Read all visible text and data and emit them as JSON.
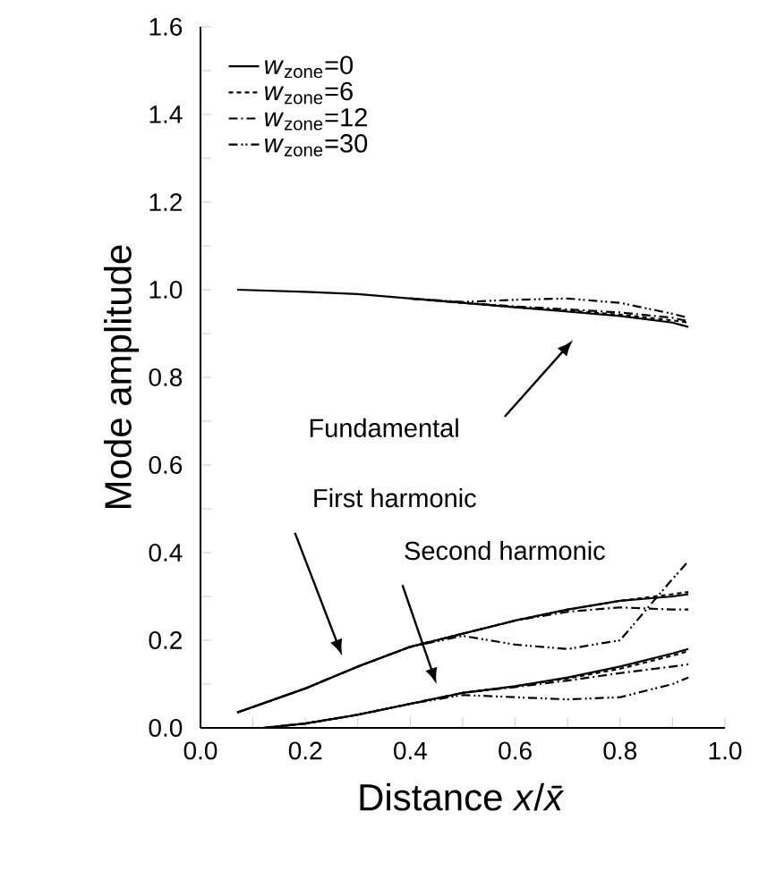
{
  "chart_data": {
    "type": "line",
    "xlabel": "Distance *x*/*x̄*",
    "ylabel": "Mode amplitude",
    "x": [
      0.07,
      0.2,
      0.3,
      0.4,
      0.5,
      0.6,
      0.7,
      0.8,
      0.9,
      0.93
    ],
    "series": [
      {
        "name": "*w*$_{zone}$=0",
        "color": "#000000",
        "line_style": "solid",
        "values": [
          1.0,
          0.995,
          0.99,
          0.98,
          0.97,
          0.96,
          0.95,
          0.94,
          0.925,
          0.915
        ]
      },
      {
        "name": "*w*$_{zone}$=6",
        "color": "#000000",
        "line_style": "dashed",
        "x": [
          0.4,
          0.5,
          0.6,
          0.7,
          0.8,
          0.9,
          0.93
        ],
        "values": [
          0.98,
          0.97,
          0.96,
          0.952,
          0.943,
          0.93,
          0.925
        ]
      },
      {
        "name": "*w*$_{zone}$=12",
        "color": "#000000",
        "line_style": "dashdot",
        "x": [
          0.4,
          0.5,
          0.6,
          0.7,
          0.8,
          0.9,
          0.93
        ],
        "values": [
          0.98,
          0.97,
          0.962,
          0.955,
          0.948,
          0.936,
          0.928
        ]
      },
      {
        "name": "*w*$_{zone}$=30",
        "color": "#000000",
        "line_style": "dashdotdot",
        "x": [
          0.4,
          0.5,
          0.6,
          0.7,
          0.8,
          0.9,
          0.93
        ],
        "values": [
          0.98,
          0.972,
          0.977,
          0.98,
          0.97,
          0.945,
          0.936
        ]
      },
      {
        "color": "#000000",
        "line_style": "solid",
        "values": [
          0.035,
          0.09,
          0.14,
          0.185,
          0.215,
          0.245,
          0.27,
          0.29,
          0.3,
          0.305
        ]
      },
      {
        "color": "#000000",
        "line_style": "dashed",
        "values": [
          0.035,
          0.09,
          0.14,
          0.185,
          0.215,
          0.245,
          0.27,
          0.29,
          0.305,
          0.31
        ]
      },
      {
        "color": "#000000",
        "line_style": "dashdot",
        "values": [
          0.035,
          0.09,
          0.14,
          0.185,
          0.215,
          0.245,
          0.265,
          0.275,
          0.27,
          0.27
        ]
      },
      {
        "color": "#000000",
        "line_style": "dashdotdot",
        "values": [
          0.035,
          0.09,
          0.14,
          0.185,
          0.21,
          0.19,
          0.18,
          0.2,
          0.34,
          0.38
        ]
      },
      {
        "x": [
          0.12,
          0.2,
          0.3,
          0.4,
          0.5,
          0.6,
          0.7,
          0.8,
          0.9,
          0.93
        ],
        "color": "#000000",
        "line_style": "solid",
        "values": [
          0.0,
          0.01,
          0.03,
          0.055,
          0.08,
          0.095,
          0.115,
          0.14,
          0.17,
          0.18
        ]
      },
      {
        "x": [
          0.12,
          0.2,
          0.3,
          0.4,
          0.5,
          0.6,
          0.7,
          0.8,
          0.9,
          0.93
        ],
        "color": "#000000",
        "line_style": "dashed",
        "values": [
          0.0,
          0.01,
          0.03,
          0.055,
          0.08,
          0.095,
          0.113,
          0.135,
          0.165,
          0.175
        ]
      },
      {
        "x": [
          0.12,
          0.2,
          0.3,
          0.4,
          0.5,
          0.6,
          0.7,
          0.8,
          0.9,
          0.93
        ],
        "color": "#000000",
        "line_style": "dashdot",
        "values": [
          0.0,
          0.01,
          0.03,
          0.055,
          0.08,
          0.093,
          0.108,
          0.125,
          0.14,
          0.145
        ]
      },
      {
        "x": [
          0.12,
          0.2,
          0.3,
          0.4,
          0.5,
          0.6,
          0.7,
          0.8,
          0.9,
          0.93
        ],
        "color": "#000000",
        "line_style": "dashdotdot",
        "values": [
          0.0,
          0.01,
          0.03,
          0.055,
          0.075,
          0.07,
          0.065,
          0.07,
          0.1,
          0.115
        ]
      }
    ],
    "xlim": [
      0,
      1.0
    ],
    "ylim": [
      0,
      1.6
    ],
    "xticks": [
      {
        "value": 0,
        "label": "0.0"
      },
      {
        "value": 0.1,
        "label": null
      },
      {
        "value": 0.2,
        "label": "0.2"
      },
      {
        "value": 0.3,
        "label": null
      },
      {
        "value": 0.4,
        "label": "0.4"
      },
      {
        "value": 0.5,
        "label": null
      },
      {
        "value": 0.6,
        "label": "0.6"
      },
      {
        "value": 0.7,
        "label": null
      },
      {
        "value": 0.8,
        "label": "0.8"
      },
      {
        "value": 0.9,
        "label": null
      },
      {
        "value": 1.0,
        "label": "1.0"
      }
    ],
    "yticks": [
      {
        "value": 0,
        "label": "0.0"
      },
      {
        "value": 0.1,
        "label": null
      },
      {
        "value": 0.2,
        "label": "0.2"
      },
      {
        "value": 0.3,
        "label": null
      },
      {
        "value": 0.4,
        "label": "0.4"
      },
      {
        "value": 0.5,
        "label": null
      },
      {
        "value": 0.6,
        "label": "0.6"
      },
      {
        "value": 0.7,
        "label": null
      },
      {
        "value": 0.8,
        "label": "0.8"
      },
      {
        "value": 0.9,
        "label": null
      },
      {
        "value": 1.0,
        "label": "1.0"
      },
      {
        "value": 1.1,
        "label": null
      },
      {
        "value": 1.2,
        "label": "1.2"
      },
      {
        "value": 1.3,
        "label": null
      },
      {
        "value": 1.4,
        "label": "1.4"
      },
      {
        "value": 1.5,
        "label": null
      },
      {
        "value": 1.6,
        "label": "1.6"
      }
    ],
    "annotations": [
      "Fundamental",
      "First harmonic",
      "Second harmonic"
    ],
    "legend": "top left",
    "marker": "none",
    "grid": false
  }
}
